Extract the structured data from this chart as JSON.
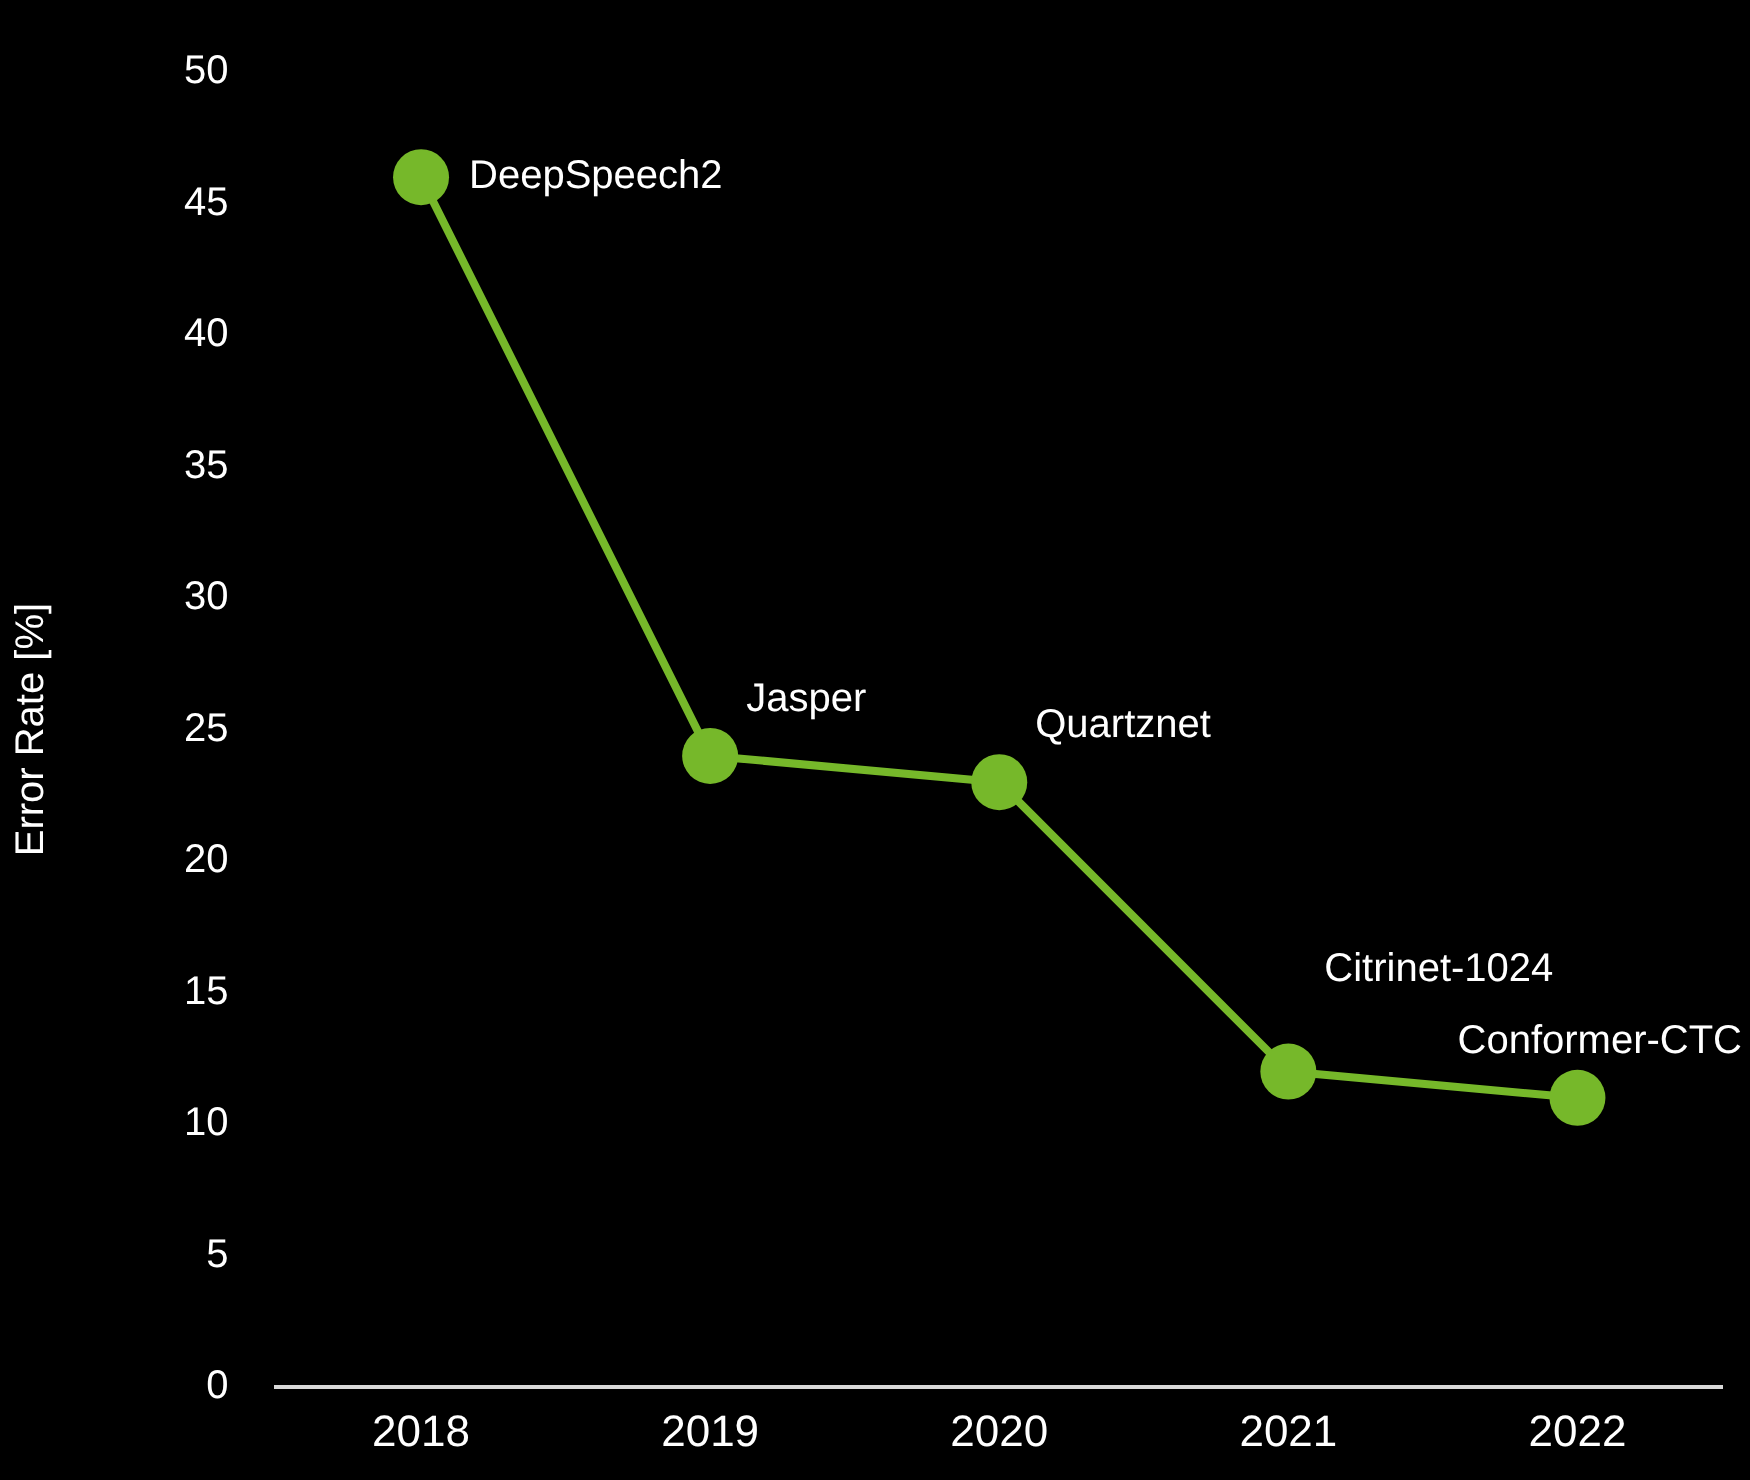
{
  "chart_data": {
    "type": "line",
    "ylabel": "Error Rate [%]",
    "categories": [
      "2018",
      "2019",
      "2020",
      "2021",
      "2022"
    ],
    "series": [
      {
        "color": "#76b82a",
        "values": [
          46,
          24,
          23,
          12,
          11
        ]
      }
    ],
    "ylim": [
      0,
      50
    ],
    "yticks": [
      0,
      5,
      10,
      15,
      20,
      25,
      30,
      35,
      40,
      45,
      50
    ],
    "grid": false,
    "legend": false,
    "marker": "circle",
    "line_style": "solid",
    "annotations": [
      {
        "text": "DeepSpeech2",
        "x": "2018",
        "y": 46
      },
      {
        "text": "Jasper",
        "x": "2019",
        "y": 24
      },
      {
        "text": "Quartznet",
        "x": "2020",
        "y": 23
      },
      {
        "text": "Citrinet-1024",
        "x": "2021",
        "y": 12
      },
      {
        "text": "Conformer-CTC",
        "x": "2022",
        "y": 11
      }
    ]
  }
}
